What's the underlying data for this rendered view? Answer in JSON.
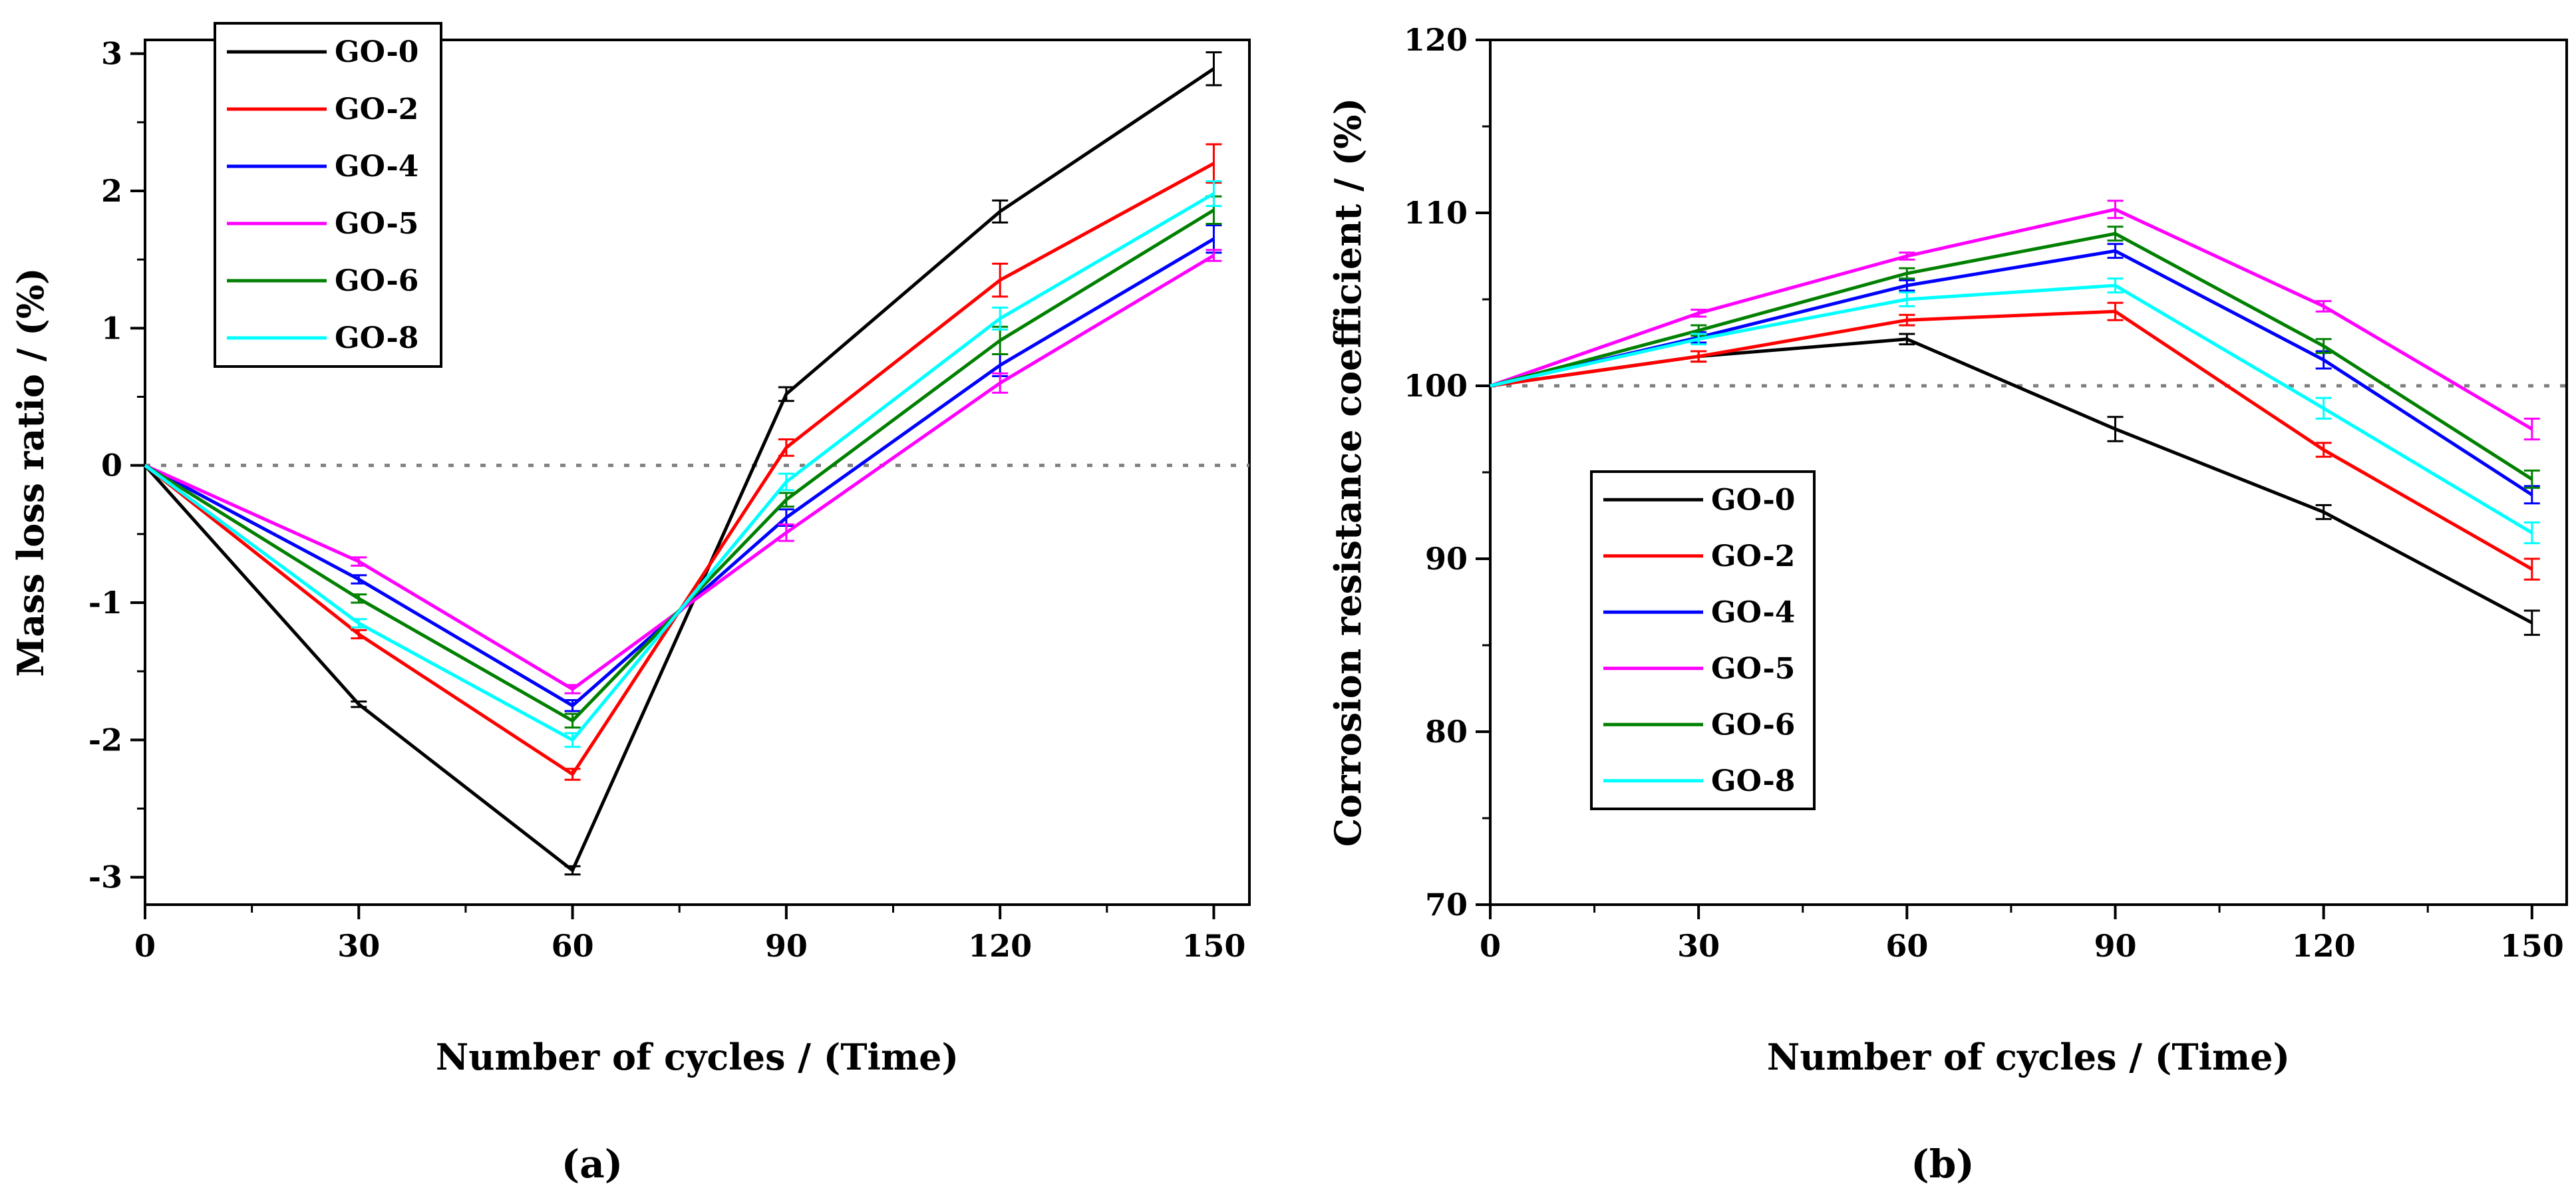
{
  "chart_data": [
    {
      "type": "line",
      "panel_label": "(a)",
      "xlabel": "Number of cycles / (Time)",
      "ylabel": "Mass loss ratio / (%)",
      "x": [
        0,
        30,
        60,
        90,
        120,
        150
      ],
      "xlim": [
        0,
        155
      ],
      "ylim": [
        -3.2,
        3.1
      ],
      "xticks": [
        0,
        30,
        60,
        90,
        120,
        150
      ],
      "yticks": [
        -3,
        -2,
        -1,
        0,
        1,
        2,
        3
      ],
      "ytick_labels": [
        "-3",
        "-2",
        "-1",
        "0",
        "1",
        "2",
        "3"
      ],
      "reference_line": 0,
      "legend_position": "top-left",
      "series": [
        {
          "name": "GO-0",
          "color": "#000000",
          "values": [
            0,
            -1.74,
            -2.95,
            0.52,
            1.85,
            2.89
          ],
          "errors": [
            0,
            0.02,
            0.03,
            0.05,
            0.08,
            0.12
          ]
        },
        {
          "name": "GO-2",
          "color": "#ff0000",
          "values": [
            0,
            -1.23,
            -2.25,
            0.13,
            1.35,
            2.2
          ],
          "errors": [
            0,
            0.03,
            0.04,
            0.06,
            0.12,
            0.14
          ]
        },
        {
          "name": "GO-4",
          "color": "#0000ff",
          "values": [
            0,
            -0.83,
            -1.75,
            -0.38,
            0.73,
            1.65
          ],
          "errors": [
            0,
            0.03,
            0.04,
            0.06,
            0.08,
            0.1
          ]
        },
        {
          "name": "GO-5",
          "color": "#ff00ff",
          "values": [
            0,
            -0.7,
            -1.63,
            -0.49,
            0.6,
            1.53
          ],
          "errors": [
            0,
            0.03,
            0.03,
            0.06,
            0.07,
            0.04
          ]
        },
        {
          "name": "GO-6",
          "color": "#008000",
          "values": [
            0,
            -0.97,
            -1.86,
            -0.25,
            0.91,
            1.86
          ],
          "errors": [
            0,
            0.03,
            0.05,
            0.05,
            0.1,
            0.1
          ]
        },
        {
          "name": "GO-8",
          "color": "#00ffff",
          "values": [
            0,
            -1.15,
            -2.0,
            -0.12,
            1.07,
            1.98
          ],
          "errors": [
            0,
            0.03,
            0.05,
            0.06,
            0.08,
            0.09
          ]
        }
      ]
    },
    {
      "type": "line",
      "panel_label": "(b)",
      "xlabel": "Number of cycles / (Time)",
      "ylabel": "Corrosion resistance coefficient / (%)",
      "x": [
        0,
        30,
        60,
        90,
        120,
        150
      ],
      "xlim": [
        0,
        155
      ],
      "ylim": [
        70,
        120
      ],
      "xticks": [
        0,
        30,
        60,
        90,
        120,
        150
      ],
      "yticks": [
        70,
        80,
        90,
        100,
        110,
        120
      ],
      "ytick_labels": [
        "70",
        "80",
        "90",
        "100",
        "110",
        "120"
      ],
      "reference_line": 100,
      "legend_position": "bottom-left",
      "series": [
        {
          "name": "GO-0",
          "color": "#000000",
          "values": [
            100,
            101.7,
            102.7,
            97.5,
            92.7,
            86.3
          ],
          "errors": [
            0,
            0.3,
            0.3,
            0.7,
            0.4,
            0.7
          ]
        },
        {
          "name": "GO-2",
          "color": "#ff0000",
          "values": [
            100,
            101.7,
            103.8,
            104.3,
            96.3,
            89.4
          ],
          "errors": [
            0,
            0.3,
            0.3,
            0.5,
            0.4,
            0.6
          ]
        },
        {
          "name": "GO-4",
          "color": "#0000ff",
          "values": [
            100,
            102.8,
            105.8,
            107.8,
            101.5,
            93.7
          ],
          "errors": [
            0,
            0.3,
            0.3,
            0.4,
            0.5,
            0.5
          ]
        },
        {
          "name": "GO-5",
          "color": "#ff00ff",
          "values": [
            100,
            104.2,
            107.5,
            110.2,
            104.6,
            97.5
          ],
          "errors": [
            0,
            0.2,
            0.2,
            0.5,
            0.3,
            0.6
          ]
        },
        {
          "name": "GO-6",
          "color": "#008000",
          "values": [
            100,
            103.2,
            106.5,
            108.8,
            102.3,
            94.6
          ],
          "errors": [
            0,
            0.3,
            0.3,
            0.4,
            0.4,
            0.5
          ]
        },
        {
          "name": "GO-8",
          "color": "#00ffff",
          "values": [
            100,
            102.7,
            105.0,
            105.8,
            98.7,
            91.5
          ],
          "errors": [
            0,
            0.3,
            0.4,
            0.4,
            0.6,
            0.6
          ]
        }
      ]
    }
  ]
}
